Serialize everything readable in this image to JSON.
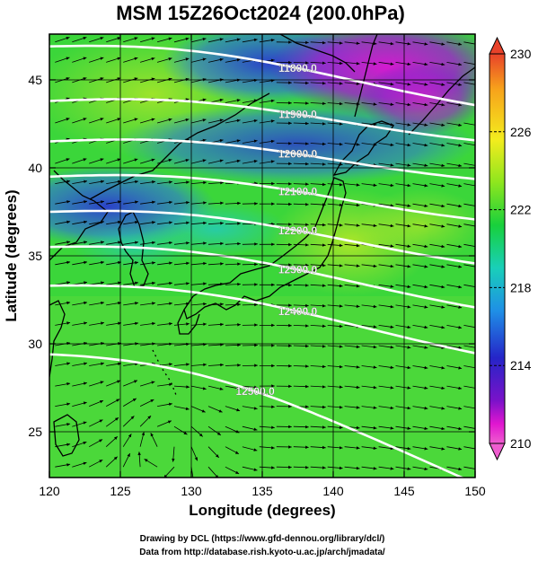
{
  "title": "MSM 15Z26Oct2024 (200.0hPa)",
  "x_axis": {
    "label": "Longitude (degrees)",
    "ticks": [
      120,
      125,
      130,
      135,
      140,
      145,
      150
    ],
    "range": [
      120,
      150
    ]
  },
  "y_axis": {
    "label": "Latitude  (degrees)",
    "ticks": [
      25,
      30,
      35,
      40,
      45
    ],
    "range": [
      22.4,
      47.6
    ]
  },
  "colorbar": {
    "labels": [
      "230",
      "226",
      "222",
      "218",
      "214",
      "210"
    ],
    "range": [
      210,
      230
    ],
    "colors_top_to_bottom": [
      "#e8422a",
      "#f7a21b",
      "#f3ec1e",
      "#8ee61e",
      "#18d03c",
      "#19cfb9",
      "#1f8fe6",
      "#2525c8",
      "#7a12c9",
      "#e016d0",
      "#ef5dcf"
    ]
  },
  "contours": [
    {
      "label": "11800.0",
      "lat_at_120": 46.9,
      "lat_at_150": 43.9,
      "label_lon": 137.5
    },
    {
      "label": "11900.0",
      "lat_at_120": 43.8,
      "lat_at_150": 41.9,
      "label_lon": 137.5
    },
    {
      "label": "12000.0",
      "lat_at_120": 41.5,
      "lat_at_150": 39.7,
      "label_lon": 137.5
    },
    {
      "label": "12100.0",
      "lat_at_120": 39.5,
      "lat_at_150": 37.4,
      "label_lon": 137.5
    },
    {
      "label": "12200.0",
      "lat_at_120": 37.5,
      "lat_at_150": 34.9,
      "label_lon": 137.5
    },
    {
      "label": "12300.0",
      "lat_at_120": 35.5,
      "lat_at_150": 32.4,
      "label_lon": 137.5
    },
    {
      "label": "12400.0",
      "lat_at_120": 33.3,
      "lat_at_150": 29.8,
      "label_lon": 137.5
    },
    {
      "label": "12500.0",
      "lat_at_120": 29.4,
      "lat_at_150": 22.4,
      "label_lon": 134.5
    }
  ],
  "credits": [
    "Drawing by DCL (https://www.gfd-dennou.org/library/dcl/)",
    "Data from http://database.rish.kyoto-u.ac.jp/arch/jmadata/"
  ]
}
